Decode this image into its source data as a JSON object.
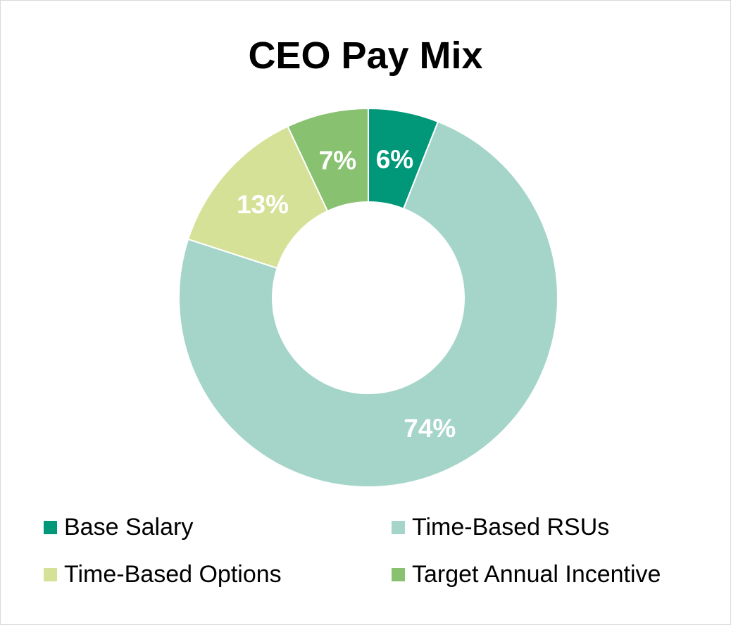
{
  "chart_data": {
    "type": "pie",
    "title": "CEO Pay Mix",
    "donut": true,
    "legend": "bottom",
    "slices": [
      {
        "name": "Base Salary",
        "value": 6,
        "label": "6%",
        "color": "#009878"
      },
      {
        "name": "Time-Based RSUs",
        "value": 74,
        "label": "74%",
        "color": "#a5d5c9"
      },
      {
        "name": "Time-Based Options",
        "value": 13,
        "label": "13%",
        "color": "#d4e196"
      },
      {
        "name": "Target Annual Incentive",
        "value": 7,
        "label": "7%",
        "color": "#88c170"
      }
    ]
  }
}
